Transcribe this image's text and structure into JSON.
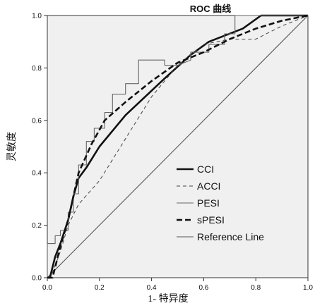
{
  "chart_data": {
    "type": "line",
    "title": "ROC 曲线",
    "xlabel": "1- 特异度",
    "ylabel": "灵敏度",
    "xlim": [
      0,
      1
    ],
    "ylim": [
      0,
      1
    ],
    "x_ticks": [
      "0.0",
      "0.2",
      "0.4",
      "0.6",
      "0.8",
      "1.0"
    ],
    "y_ticks": [
      "0.0",
      "0.2",
      "0.4",
      "0.6",
      "0.8",
      "1.0"
    ],
    "grid": false,
    "background_color": "#f0f0f0",
    "legend_position": "bottom-right inside",
    "series": [
      {
        "name": "CCI",
        "style": "solid-thick",
        "points": [
          [
            0.0,
            0.0
          ],
          [
            0.01,
            0.0
          ],
          [
            0.03,
            0.08
          ],
          [
            0.05,
            0.13
          ],
          [
            0.08,
            0.22
          ],
          [
            0.1,
            0.31
          ],
          [
            0.12,
            0.38
          ],
          [
            0.15,
            0.42
          ],
          [
            0.2,
            0.5
          ],
          [
            0.3,
            0.62
          ],
          [
            0.45,
            0.76
          ],
          [
            0.55,
            0.85
          ],
          [
            0.62,
            0.9
          ],
          [
            0.75,
            0.95
          ],
          [
            0.82,
            1.0
          ],
          [
            1.0,
            1.0
          ]
        ]
      },
      {
        "name": "ACCI",
        "style": "dashed-thin",
        "points": [
          [
            0.0,
            0.0
          ],
          [
            0.02,
            0.02
          ],
          [
            0.05,
            0.1
          ],
          [
            0.08,
            0.2
          ],
          [
            0.12,
            0.28
          ],
          [
            0.2,
            0.37
          ],
          [
            0.3,
            0.53
          ],
          [
            0.4,
            0.69
          ],
          [
            0.5,
            0.81
          ],
          [
            0.6,
            0.89
          ],
          [
            0.7,
            0.91
          ],
          [
            0.8,
            0.91
          ],
          [
            0.9,
            0.96
          ],
          [
            1.0,
            1.0
          ]
        ]
      },
      {
        "name": "PESI",
        "style": "solid-thin-step",
        "points": [
          [
            0.0,
            0.0
          ],
          [
            0.0,
            0.13
          ],
          [
            0.03,
            0.13
          ],
          [
            0.03,
            0.16
          ],
          [
            0.05,
            0.16
          ],
          [
            0.05,
            0.18
          ],
          [
            0.08,
            0.18
          ],
          [
            0.08,
            0.25
          ],
          [
            0.1,
            0.25
          ],
          [
            0.1,
            0.32
          ],
          [
            0.12,
            0.32
          ],
          [
            0.12,
            0.43
          ],
          [
            0.15,
            0.43
          ],
          [
            0.15,
            0.52
          ],
          [
            0.18,
            0.52
          ],
          [
            0.18,
            0.57
          ],
          [
            0.22,
            0.57
          ],
          [
            0.22,
            0.63
          ],
          [
            0.25,
            0.63
          ],
          [
            0.25,
            0.7
          ],
          [
            0.3,
            0.7
          ],
          [
            0.3,
            0.74
          ],
          [
            0.35,
            0.74
          ],
          [
            0.35,
            0.83
          ],
          [
            0.45,
            0.83
          ],
          [
            0.45,
            0.81
          ],
          [
            0.5,
            0.81
          ],
          [
            0.55,
            0.83
          ],
          [
            0.55,
            0.86
          ],
          [
            0.62,
            0.86
          ],
          [
            0.62,
            0.89
          ],
          [
            0.68,
            0.89
          ],
          [
            0.68,
            0.93
          ],
          [
            0.72,
            0.93
          ],
          [
            0.72,
            1.0
          ],
          [
            1.0,
            1.0
          ]
        ]
      },
      {
        "name": "sPESI",
        "style": "dashed-thick",
        "points": [
          [
            0.0,
            0.0
          ],
          [
            0.02,
            0.0
          ],
          [
            0.05,
            0.12
          ],
          [
            0.08,
            0.22
          ],
          [
            0.12,
            0.4
          ],
          [
            0.17,
            0.51
          ],
          [
            0.22,
            0.6
          ],
          [
            0.3,
            0.67
          ],
          [
            0.4,
            0.75
          ],
          [
            0.5,
            0.82
          ],
          [
            0.6,
            0.86
          ],
          [
            0.7,
            0.91
          ],
          [
            0.8,
            0.95
          ],
          [
            0.9,
            0.98
          ],
          [
            1.0,
            1.0
          ]
        ]
      },
      {
        "name": "Reference Line",
        "style": "solid-thin",
        "points": [
          [
            0,
            0
          ],
          [
            1,
            1
          ]
        ]
      }
    ]
  }
}
